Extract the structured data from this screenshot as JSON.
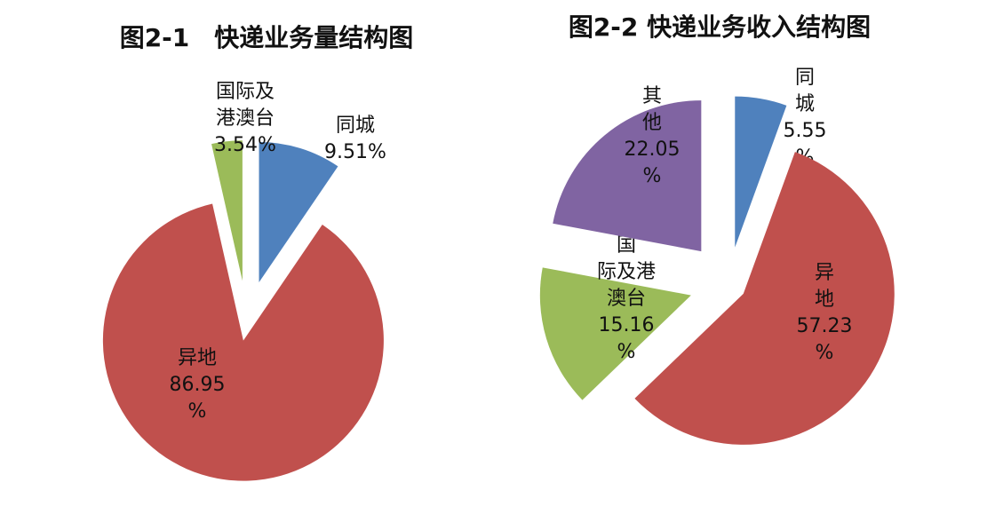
{
  "chart_data": [
    {
      "type": "pie",
      "title": "图2-1　快递业务量结构图",
      "slices": [
        {
          "name": "同城",
          "value": 9.51,
          "label_lines": [
            "同城",
            "9.51%"
          ],
          "color": "#4F81BD"
        },
        {
          "name": "异地",
          "value": 86.95,
          "label_lines": [
            "异地",
            "86.95",
            "%"
          ],
          "color": "#C0504D"
        },
        {
          "name": "国际及港澳台",
          "value": 3.54,
          "label_lines": [
            "国际及",
            "港澳台",
            "3.54%"
          ],
          "color": "#9BBB59"
        }
      ]
    },
    {
      "type": "pie",
      "title": "图2-2 快递业务收入结构图",
      "slices": [
        {
          "name": "同城",
          "value": 5.55,
          "label_lines": [
            "同",
            "城",
            "5.55",
            "%"
          ],
          "color": "#4F81BD"
        },
        {
          "name": "异地",
          "value": 57.23,
          "label_lines": [
            "异",
            "地",
            "57.23",
            "%"
          ],
          "color": "#C0504D"
        },
        {
          "name": "国际及港澳台",
          "value": 15.16,
          "label_lines": [
            "国",
            "际及港",
            "澳台",
            "15.16",
            "%"
          ],
          "color": "#9BBB59"
        },
        {
          "name": "其他",
          "value": 22.05,
          "label_lines": [
            "其",
            "他",
            "22.05",
            "%"
          ],
          "color": "#8064A2"
        }
      ]
    }
  ]
}
